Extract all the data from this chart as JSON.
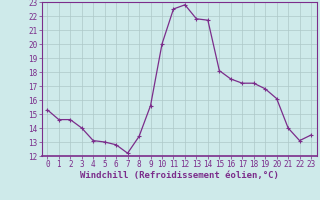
{
  "x": [
    0,
    1,
    2,
    3,
    4,
    5,
    6,
    7,
    8,
    9,
    10,
    11,
    12,
    13,
    14,
    15,
    16,
    17,
    18,
    19,
    20,
    21,
    22,
    23
  ],
  "y": [
    15.3,
    14.6,
    14.6,
    14.0,
    13.1,
    13.0,
    12.8,
    12.2,
    13.4,
    15.6,
    20.0,
    22.5,
    22.8,
    21.8,
    21.7,
    18.1,
    17.5,
    17.2,
    17.2,
    16.8,
    16.1,
    14.0,
    13.1,
    13.5
  ],
  "line_color": "#7b2d8b",
  "marker": "+",
  "marker_size": 3,
  "marker_lw": 0.8,
  "line_width": 0.9,
  "background_color": "#ceeaea",
  "grid_color": "#aec8c8",
  "xlabel": "Windchill (Refroidissement éolien,°C)",
  "xlabel_fontsize": 6.5,
  "xlim": [
    -0.5,
    23.5
  ],
  "ylim": [
    12,
    23
  ],
  "yticks": [
    12,
    13,
    14,
    15,
    16,
    17,
    18,
    19,
    20,
    21,
    22,
    23
  ],
  "xticks": [
    0,
    1,
    2,
    3,
    4,
    5,
    6,
    7,
    8,
    9,
    10,
    11,
    12,
    13,
    14,
    15,
    16,
    17,
    18,
    19,
    20,
    21,
    22,
    23
  ],
  "tick_fontsize": 5.5,
  "axis_label_color": "#7b2d8b",
  "tick_color": "#7b2d8b",
  "spine_color": "#7b2d8b"
}
